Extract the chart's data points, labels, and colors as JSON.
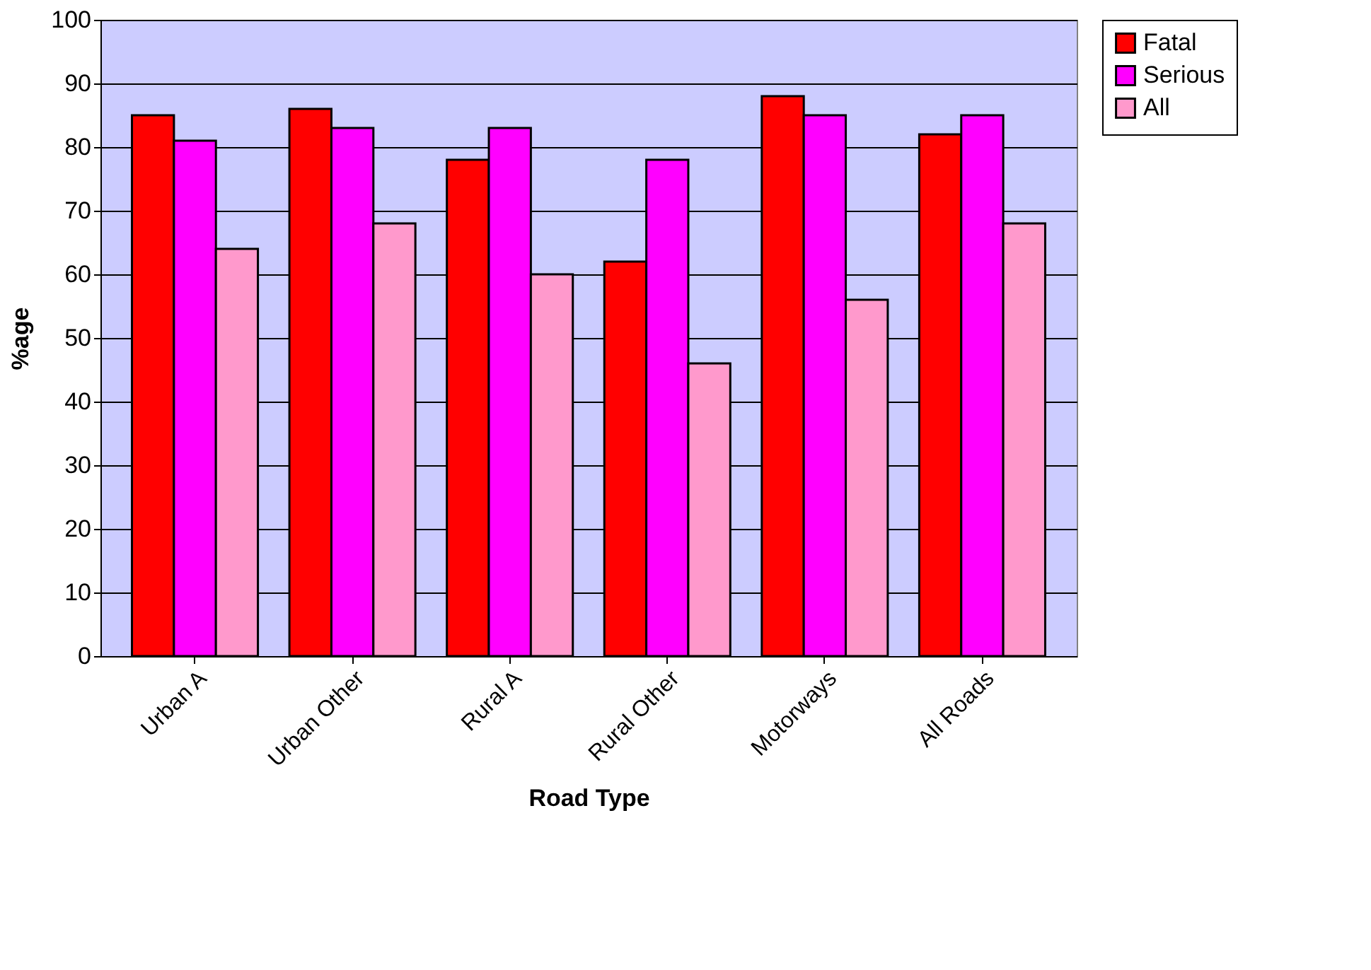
{
  "chart_data": {
    "type": "bar",
    "xlabel": "Road Type",
    "ylabel": "%age",
    "categories": [
      "Urban A",
      "Urban Other",
      "Rural A",
      "Rural Other",
      "Motorways",
      "All Roads"
    ],
    "series": [
      {
        "name": "Fatal",
        "color": "#ff0000",
        "values": [
          85,
          86,
          78,
          62,
          88,
          82
        ]
      },
      {
        "name": "Serious",
        "color": "#ff00ff",
        "values": [
          81,
          83,
          83,
          78,
          85,
          85
        ]
      },
      {
        "name": "All",
        "color": "#ff99cc",
        "values": [
          64,
          68,
          60,
          46,
          56,
          68
        ]
      }
    ],
    "ylim": [
      0,
      100
    ],
    "yticks": [
      0,
      10,
      20,
      30,
      40,
      50,
      60,
      70,
      80,
      90,
      100
    ],
    "grid": "y",
    "legend": "right"
  }
}
